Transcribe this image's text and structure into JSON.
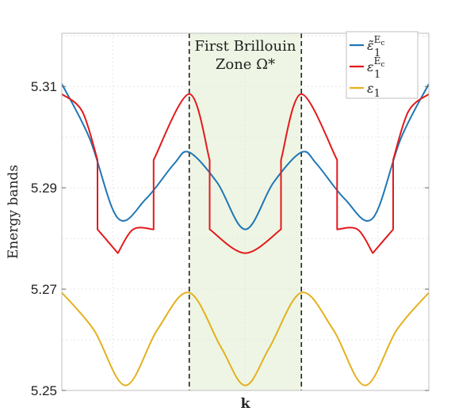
{
  "chart_data": {
    "type": "line",
    "title": "",
    "xlabel": "k",
    "ylabel": "Energy bands",
    "ylim": [
      5.25,
      5.3205
    ],
    "xlim": [
      0,
      1
    ],
    "yticks": [
      5.25,
      5.27,
      5.29,
      5.31
    ],
    "ytick_labels": [
      "5.25",
      "5.27",
      "5.29",
      "5.31"
    ],
    "grid": true,
    "legend_position": "top-right",
    "zone": {
      "label_line1": "First Brillouin",
      "label_line2": "Zone Ω*",
      "x_start": 0.3472,
      "x_end": 0.6528,
      "fill_color": "#eef5e4",
      "line_color": "#222222"
    },
    "series": [
      {
        "name": "ε̃₁^{E_c}",
        "legend_main": "ε̃",
        "legend_sub": "1",
        "legend_sup": "E",
        "legend_supsub": "c",
        "color": "#1f77b4",
        "x": [
          0,
          0.076,
          0.1528,
          0.2292,
          0.3056,
          0.3472,
          0.4236,
          0.5,
          0.5764,
          0.6528,
          0.6944,
          0.7708,
          0.8472,
          0.9236,
          1
        ],
        "values": [
          5.3105,
          5.2997,
          5.284,
          5.2878,
          5.2947,
          5.297,
          5.291,
          5.2818,
          5.291,
          5.297,
          5.2947,
          5.2878,
          5.284,
          5.2997,
          5.3105
        ]
      },
      {
        "name": "ε₁^{E_c}",
        "legend_main": "ε",
        "legend_sub": "1",
        "legend_sup": "E",
        "legend_supsub": "c",
        "color": "#e31a1c",
        "x": [
          0,
          0.0556,
          0.0972,
          0.0972,
          0.1528,
          0.1528,
          0.1944,
          0.25,
          0.25,
          0.3472,
          0.4028,
          0.4028,
          0.5,
          0.5972,
          0.5972,
          0.6528,
          0.75,
          0.75,
          0.8056,
          0.8472,
          0.8472,
          0.9028,
          0.9028,
          0.9444,
          1
        ],
        "values": [
          5.3085,
          5.3051,
          5.2955,
          5.2818,
          5.2771,
          5.2771,
          5.2818,
          5.2818,
          5.2955,
          5.3085,
          5.2955,
          5.2818,
          5.2771,
          5.2818,
          5.2955,
          5.3085,
          5.2955,
          5.2818,
          5.2818,
          5.2771,
          5.2771,
          5.2818,
          5.2955,
          5.3051,
          5.3085
        ]
      },
      {
        "name": "ε₁",
        "legend_main": "ε",
        "legend_sub": "1",
        "legend_sup": "",
        "legend_supsub": "",
        "color": "#e3b11c",
        "x": [
          0,
          0.0868,
          0.1736,
          0.2604,
          0.3472,
          0.434,
          0.5,
          0.566,
          0.6528,
          0.7396,
          0.8264,
          0.9132,
          1
        ],
        "values": [
          5.2693,
          5.262,
          5.251,
          5.262,
          5.2693,
          5.2585,
          5.251,
          5.2585,
          5.2693,
          5.262,
          5.251,
          5.262,
          5.2693
        ]
      }
    ]
  }
}
